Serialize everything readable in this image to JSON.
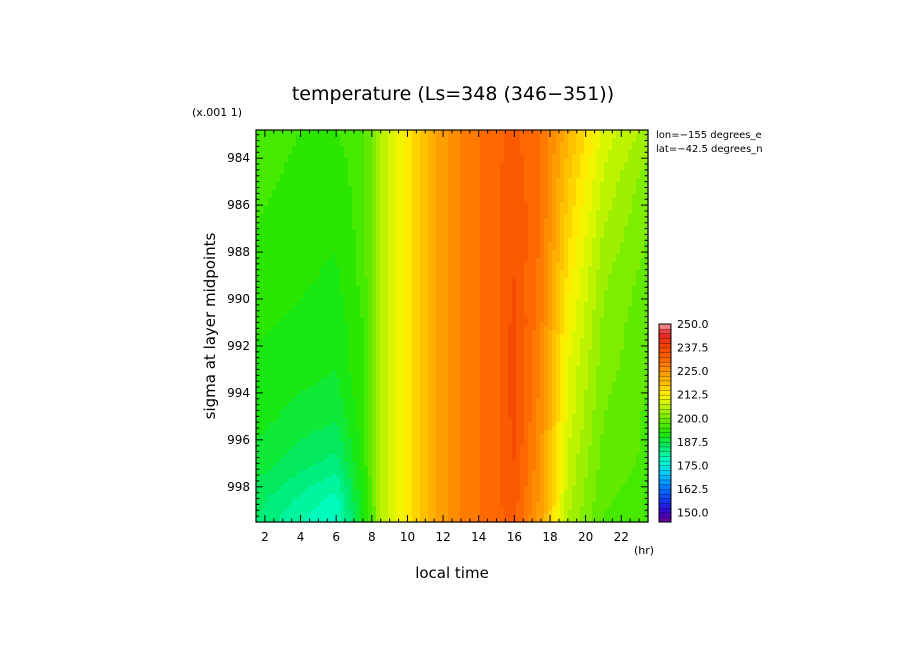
{
  "chart_data": {
    "type": "heatmap",
    "title": "temperature (Ls=348 (346−351))",
    "xlabel": "local time",
    "ylabel": "sigma at layer midpoints",
    "x_unit": "(hr)",
    "y_scale_note": "(x.001 1)",
    "annotations": [
      "lon=−155 degrees_e",
      "lat=−42.5 degrees_n"
    ],
    "x_ticks": [
      "2",
      "4",
      "6",
      "8",
      "10",
      "12",
      "14",
      "16",
      "18",
      "20",
      "22"
    ],
    "y_ticks": [
      "984",
      "986",
      "988",
      "990",
      "992",
      "994",
      "996",
      "998"
    ],
    "xlim": [
      1.5,
      23.5
    ],
    "ylim": [
      982.8,
      999.5
    ],
    "y_inverted": true,
    "colorbar": {
      "min": 145,
      "max": 250,
      "step": 2.5,
      "tick_labels": [
        "250.0",
        "237.5",
        "225.0",
        "212.5",
        "200.0",
        "187.5",
        "175.0",
        "162.5",
        "150.0"
      ]
    },
    "x": [
      1.5,
      4,
      6,
      7.5,
      8.5,
      10,
      12,
      13.5,
      15,
      16,
      17.5,
      19,
      21,
      23.5
    ],
    "y": [
      982.8,
      985,
      987,
      989,
      991,
      993,
      995,
      997,
      998.5,
      999.5
    ],
    "values": [
      [
        197,
        195,
        195,
        196,
        205,
        214,
        224,
        229,
        232,
        233,
        230,
        221,
        209,
        204
      ],
      [
        196,
        194,
        194,
        196,
        205,
        214,
        224,
        229,
        232,
        234,
        230,
        218,
        207,
        201
      ],
      [
        195,
        193,
        193,
        196,
        205,
        214,
        224,
        229,
        232,
        235,
        230,
        216,
        205,
        200
      ],
      [
        194,
        193,
        192,
        196,
        205,
        214,
        224,
        229,
        232,
        235,
        229,
        214,
        203,
        199
      ],
      [
        193,
        192,
        191,
        195,
        205,
        214,
        224,
        229,
        232,
        236,
        228,
        212,
        202,
        198
      ],
      [
        192,
        191,
        190,
        195,
        205,
        214,
        224,
        229,
        232,
        236,
        227,
        210,
        201,
        198
      ],
      [
        191,
        189,
        188,
        194,
        205,
        214,
        224,
        229,
        232,
        236,
        226,
        209,
        200,
        197
      ],
      [
        189,
        186,
        184,
        193,
        205,
        214,
        224,
        229,
        232,
        235,
        225,
        207,
        199,
        197
      ],
      [
        186,
        182,
        179,
        192,
        205,
        214,
        224,
        229,
        232,
        234,
        224,
        206,
        198,
        196
      ],
      [
        185,
        180,
        177,
        191,
        205,
        214,
        224,
        229,
        232,
        233,
        223,
        205,
        197,
        196
      ]
    ]
  }
}
